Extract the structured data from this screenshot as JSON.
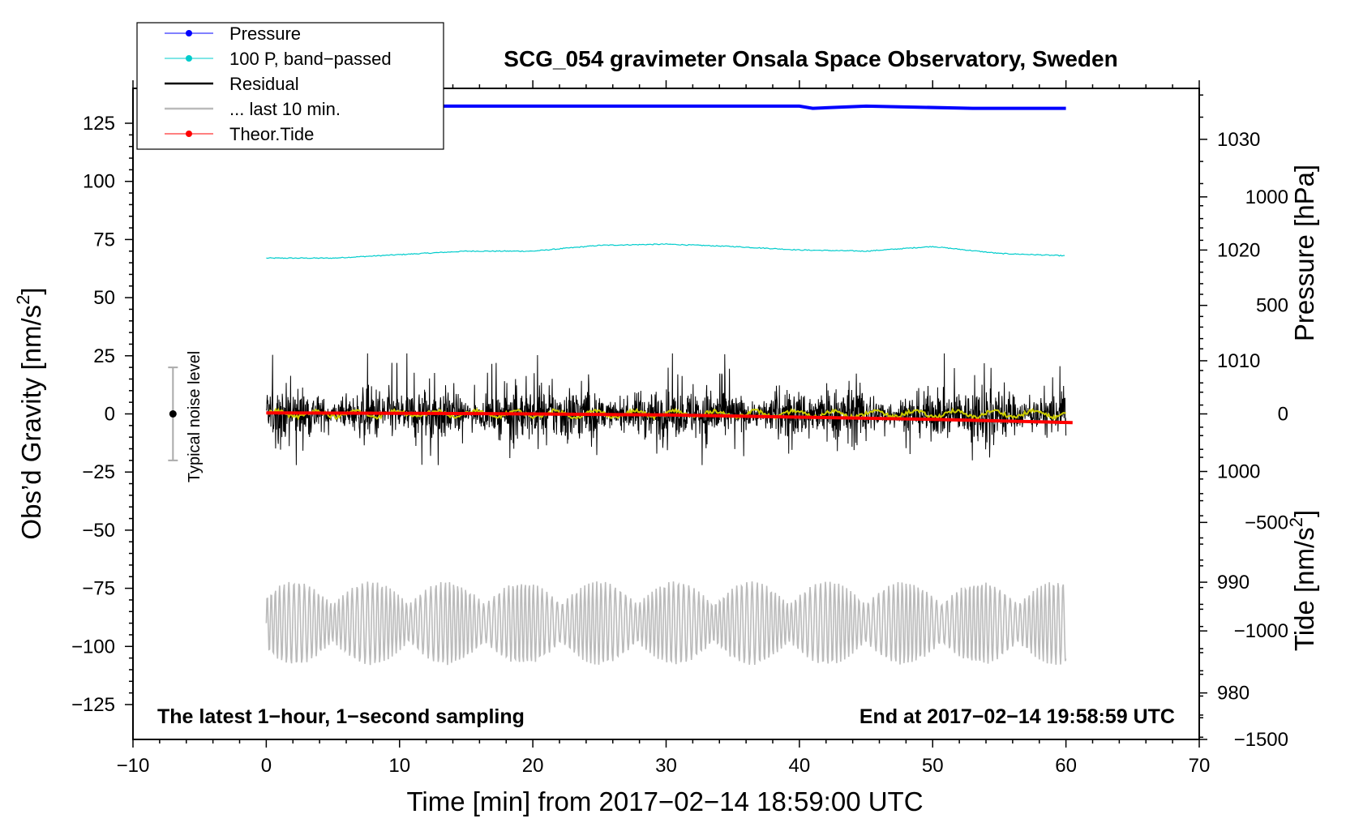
{
  "chart_data": {
    "type": "line",
    "title": "SCG_054 gravimeter Onsala Space Observatory, Sweden",
    "xlabel": "Time [min] from 2017−02−14 18:59:00 UTC",
    "ylabel_left_main": "Obs’d Gravity [nm/s",
    "ylabel_left_sup": "2",
    "ylabel_left_close": "]",
    "ylabel_right_pressure": "Pressure [hPa]",
    "ylabel_right_tide_main": "Tide [nm/s",
    "ylabel_right_tide_sup": "2",
    "ylabel_right_tide_close": "]",
    "xlim": [
      -10,
      70
    ],
    "ylim": [
      -140,
      140
    ],
    "pressure_lim": [
      975.8,
      1034.6
    ],
    "tide_lim": [
      -1500,
      1500
    ],
    "x_ticks": [
      {
        "v": -10,
        "label": "−10"
      },
      {
        "v": 0,
        "label": "0"
      },
      {
        "v": 10,
        "label": "10"
      },
      {
        "v": 20,
        "label": "20"
      },
      {
        "v": 30,
        "label": "30"
      },
      {
        "v": 40,
        "label": "40"
      },
      {
        "v": 50,
        "label": "50"
      },
      {
        "v": 60,
        "label": "60"
      },
      {
        "v": 70,
        "label": "70"
      }
    ],
    "y_ticks": [
      {
        "v": 125,
        "label": "125"
      },
      {
        "v": 100,
        "label": "100"
      },
      {
        "v": 75,
        "label": "75"
      },
      {
        "v": 50,
        "label": "50"
      },
      {
        "v": 25,
        "label": "25"
      },
      {
        "v": 0,
        "label": "0"
      },
      {
        "v": -25,
        "label": "−25"
      },
      {
        "v": -50,
        "label": "−50"
      },
      {
        "v": -75,
        "label": "−75"
      },
      {
        "v": -100,
        "label": "−100"
      },
      {
        "v": -125,
        "label": "−125"
      }
    ],
    "pressure_ticks": [
      {
        "v": 1030,
        "label": "1030"
      },
      {
        "v": 1020,
        "label": "1020"
      },
      {
        "v": 1010,
        "label": "1010"
      },
      {
        "v": 1000,
        "label": "1000"
      },
      {
        "v": 990,
        "label": "990"
      },
      {
        "v": 980,
        "label": "980"
      }
    ],
    "tide_ticks": [
      {
        "v": 1000,
        "label": "1000"
      },
      {
        "v": 500,
        "label": "500"
      },
      {
        "v": 0,
        "label": "0"
      },
      {
        "v": -500,
        "label": "−500"
      },
      {
        "v": -1000,
        "label": "−1000"
      },
      {
        "v": -1500,
        "label": "−1500"
      }
    ],
    "legend": [
      {
        "label": "Pressure",
        "color": "#0000ff",
        "marker": true
      },
      {
        "label": "100 P, band−passed",
        "color": "#00cccc",
        "marker": true
      },
      {
        "label": "Residual",
        "color": "#000000",
        "marker": false
      },
      {
        "label": "... last 10 min.",
        "color": "#bbbbbb",
        "marker": false
      },
      {
        "label": "Theor.Tide",
        "color": "#ff0000",
        "marker": true
      }
    ],
    "series": [
      {
        "name": "Pressure",
        "axis": "pressure",
        "color": "#0000ff",
        "x": [
          0,
          20,
          40,
          41,
          45,
          53,
          60
        ],
        "y": [
          1033.0,
          1033.0,
          1033.0,
          1032.8,
          1033.0,
          1032.8,
          1032.8
        ]
      },
      {
        "name": "100 P, band-passed",
        "axis": "left",
        "color": "#00cccc",
        "x": [
          0,
          5,
          10,
          15,
          20,
          25,
          30,
          35,
          40,
          45,
          50,
          55,
          60
        ],
        "y": [
          67,
          67,
          68.5,
          70,
          70,
          72.5,
          73,
          72,
          70.5,
          70,
          72,
          69,
          68
        ]
      },
      {
        "name": "Residual",
        "axis": "left",
        "color": "#000000",
        "x": [
          0,
          60
        ],
        "amplitude": 22,
        "center": 0
      },
      {
        "name": "Residual smoothed",
        "axis": "left",
        "color": "#cccc00",
        "x": [
          0,
          60
        ],
        "center": 0
      },
      {
        "name": "... last 10 min.",
        "axis": "left",
        "color": "#bbbbbb",
        "x": [
          0,
          60
        ],
        "center": -90,
        "amplitude": 18
      },
      {
        "name": "Theor.Tide",
        "axis": "tide",
        "color": "#ff0000",
        "x": [
          0,
          10,
          20,
          30,
          40,
          50,
          60.5
        ],
        "y": [
          5,
          3,
          0,
          -5,
          -15,
          -25,
          -40
        ]
      }
    ],
    "annotations": {
      "bottom_left": "The latest 1−hour, 1−second sampling",
      "bottom_right": "End at 2017−02−14 19:58:59 UTC",
      "noise_label": "Typical noise level",
      "noise_bar": {
        "x": -7,
        "center": 0,
        "low": -20,
        "high": 20
      }
    }
  }
}
